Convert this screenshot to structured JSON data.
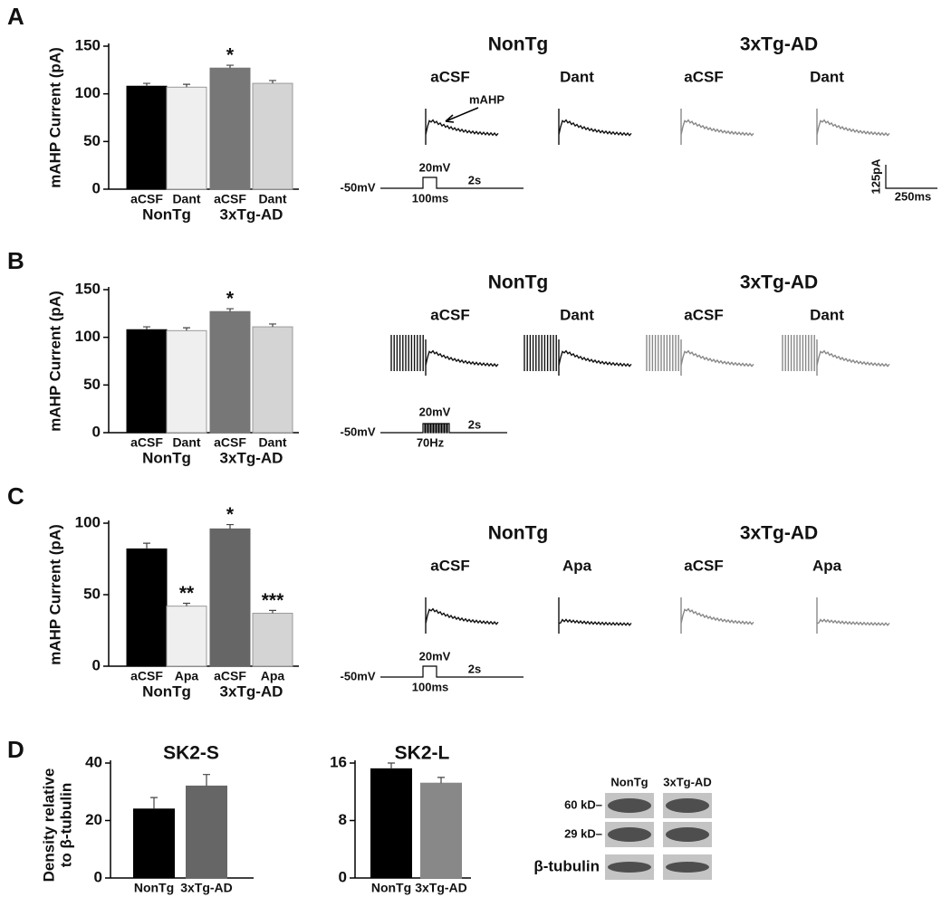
{
  "panel_labels": [
    "A",
    "B",
    "C",
    "D"
  ],
  "chart_data": [
    {
      "type": "bar",
      "y_label": "mAHP Current (pA)",
      "categories": [
        "aCSF",
        "Dant",
        "aCSF",
        "Dant"
      ],
      "groups": [
        "NonTg",
        "3xTg-AD"
      ],
      "values": [
        108,
        107,
        127,
        111
      ],
      "errors": [
        3,
        3,
        3,
        3
      ],
      "annotations": [
        null,
        null,
        "*",
        null
      ],
      "colors": [
        "#000000",
        "#efefef",
        "#777777",
        "#d4d4d4"
      ],
      "ylim": [
        0,
        150
      ],
      "yticks": [
        0,
        50,
        100,
        150
      ]
    },
    {
      "type": "bar",
      "y_label": "mAHP Current (pA)",
      "categories": [
        "aCSF",
        "Dant",
        "aCSF",
        "Dant"
      ],
      "groups": [
        "NonTg",
        "3xTg-AD"
      ],
      "values": [
        108,
        107,
        127,
        111
      ],
      "errors": [
        3,
        3,
        3,
        3
      ],
      "annotations": [
        null,
        null,
        "*",
        null
      ],
      "colors": [
        "#000000",
        "#efefef",
        "#777777",
        "#d4d4d4"
      ],
      "ylim": [
        0,
        150
      ],
      "yticks": [
        0,
        50,
        100,
        150
      ]
    },
    {
      "type": "bar",
      "y_label": "mAHP Current (pA)",
      "categories": [
        "aCSF",
        "Apa",
        "aCSF",
        "Apa"
      ],
      "groups": [
        "NonTg",
        "3xTg-AD"
      ],
      "values": [
        82,
        42,
        96,
        37
      ],
      "errors": [
        4,
        2,
        3,
        2
      ],
      "annotations": [
        null,
        "**",
        "*",
        "***"
      ],
      "colors": [
        "#000000",
        "#efefef",
        "#666666",
        "#d4d4d4"
      ],
      "ylim": [
        0,
        100
      ],
      "yticks": [
        0,
        50,
        100
      ]
    },
    {
      "type": "bar",
      "title": "SK2-S",
      "y_label": [
        "Density relative",
        "to β-tubulin"
      ],
      "categories": [
        "NonTg",
        "3xTg-AD"
      ],
      "values": [
        24,
        32
      ],
      "errors": [
        4,
        4
      ],
      "colors": [
        "#000000",
        "#666666"
      ],
      "ylim": [
        0,
        40
      ],
      "yticks": [
        0,
        20,
        40
      ]
    },
    {
      "type": "bar",
      "title": "SK2-L",
      "categories": [
        "NonTg",
        "3xTg-AD"
      ],
      "values": [
        15.2,
        13.2
      ],
      "errors": [
        0.8,
        0.8
      ],
      "colors": [
        "#000000",
        "#888888"
      ],
      "ylim": [
        0,
        16
      ],
      "yticks": [
        0,
        8,
        16
      ]
    }
  ],
  "traces": [
    {
      "groups": [
        "NonTg",
        "3xTg-AD"
      ],
      "conditions": [
        "aCSF",
        "Dant",
        "aCSF",
        "Dant"
      ],
      "arrow": "mAHP",
      "protocol": {
        "hold": "-50mV",
        "step": "20mV",
        "duration": "100ms",
        "total": "2s"
      },
      "scale": {
        "current": "125pA",
        "time": "250ms"
      }
    },
    {
      "groups": [
        "NonTg",
        "3xTg-AD"
      ],
      "conditions": [
        "aCSF",
        "Dant",
        "aCSF",
        "Dant"
      ],
      "protocol": {
        "hold": "-50mV",
        "step": "20mV",
        "duration": "70Hz",
        "total": "2s"
      }
    },
    {
      "groups": [
        "NonTg",
        "3xTg-AD"
      ],
      "conditions": [
        "aCSF",
        "Apa",
        "aCSF",
        "Apa"
      ],
      "protocol": {
        "hold": "-50mV",
        "step": "20mV",
        "duration": "100ms",
        "total": "2s"
      }
    }
  ],
  "blot": {
    "lanes": [
      "NonTg",
      "3xTg-AD"
    ],
    "rows": [
      "60 kD–",
      "29 kD–",
      "β-tubulin"
    ]
  }
}
